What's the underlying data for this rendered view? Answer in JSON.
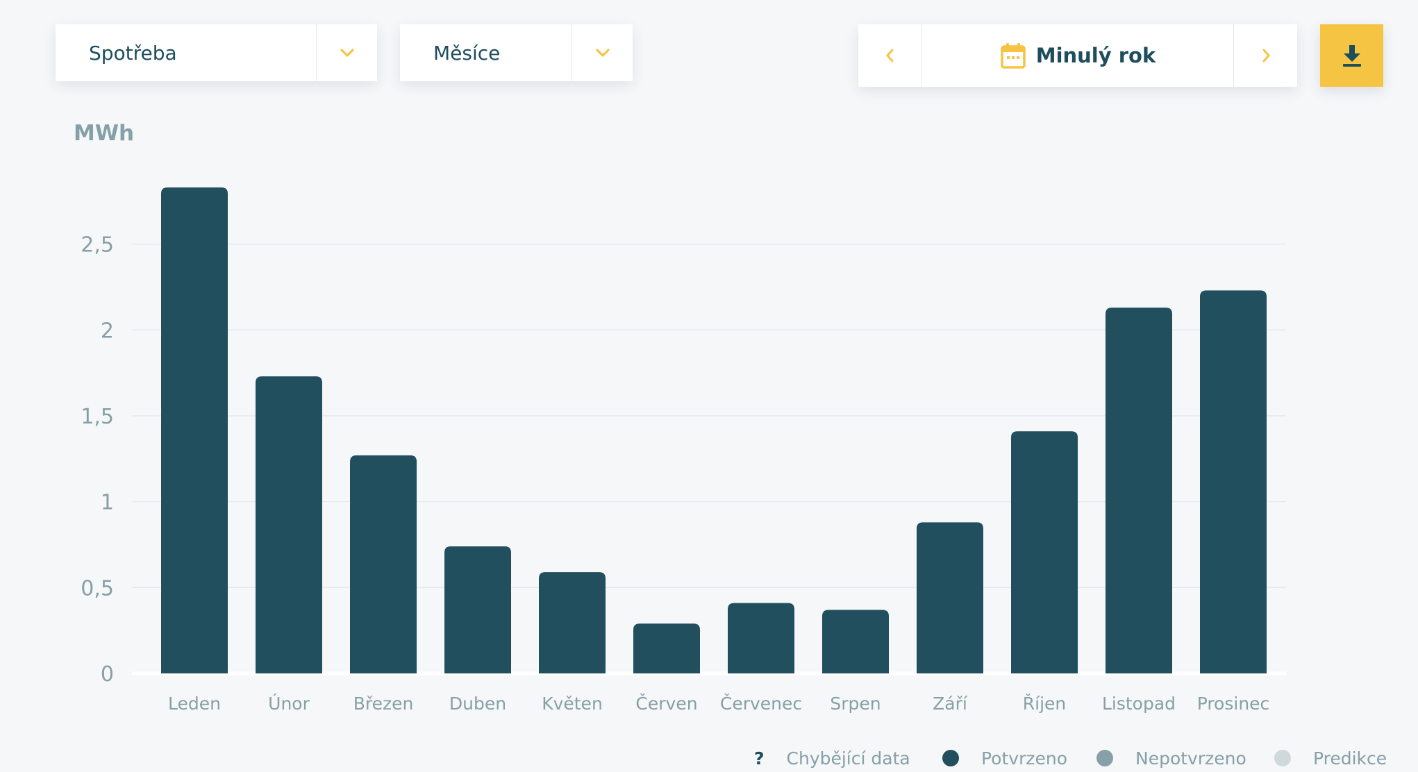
{
  "controls": {
    "metric": "Spotřeba",
    "granularity": "Měsíce",
    "period": "Minulý rok"
  },
  "colors": {
    "bar": "#214f5e",
    "accent": "#f5c443",
    "axis_text": "#86a0a7",
    "grid": "#e6eaed"
  },
  "icons": {
    "metric_toggle": "chevron-down-icon",
    "granularity_toggle": "chevron-down-icon",
    "prev": "chevron-left-icon",
    "next": "chevron-right-icon",
    "period": "calendar-icon",
    "download": "download-icon"
  },
  "chart_data": {
    "type": "bar",
    "ylabel": "MWh",
    "ylim": [
      0,
      2.83
    ],
    "yticks": [
      "0",
      "0,5",
      "1",
      "1,5",
      "2",
      "2,5"
    ],
    "ytick_values": [
      0,
      0.5,
      1,
      1.5,
      2,
      2.5
    ],
    "grid": true,
    "categories": [
      "Leden",
      "Únor",
      "Březen",
      "Duben",
      "Květen",
      "Červen",
      "Červenec",
      "Srpen",
      "Září",
      "Říjen",
      "Listopad",
      "Prosinec"
    ],
    "values": [
      2.83,
      1.73,
      1.27,
      0.74,
      0.59,
      0.29,
      0.41,
      0.37,
      0.88,
      1.41,
      2.13,
      2.23
    ],
    "legend": [
      {
        "label": "Chybějící data",
        "marker": "?",
        "color": "#1e4d5c"
      },
      {
        "label": "Potvrzeno",
        "marker": "dot",
        "color": "#214f5e"
      },
      {
        "label": "Nepotvrzeno",
        "marker": "dot",
        "color": "#86a0a7"
      },
      {
        "label": "Predikce",
        "marker": "dot",
        "color": "#cfd9db"
      }
    ]
  }
}
